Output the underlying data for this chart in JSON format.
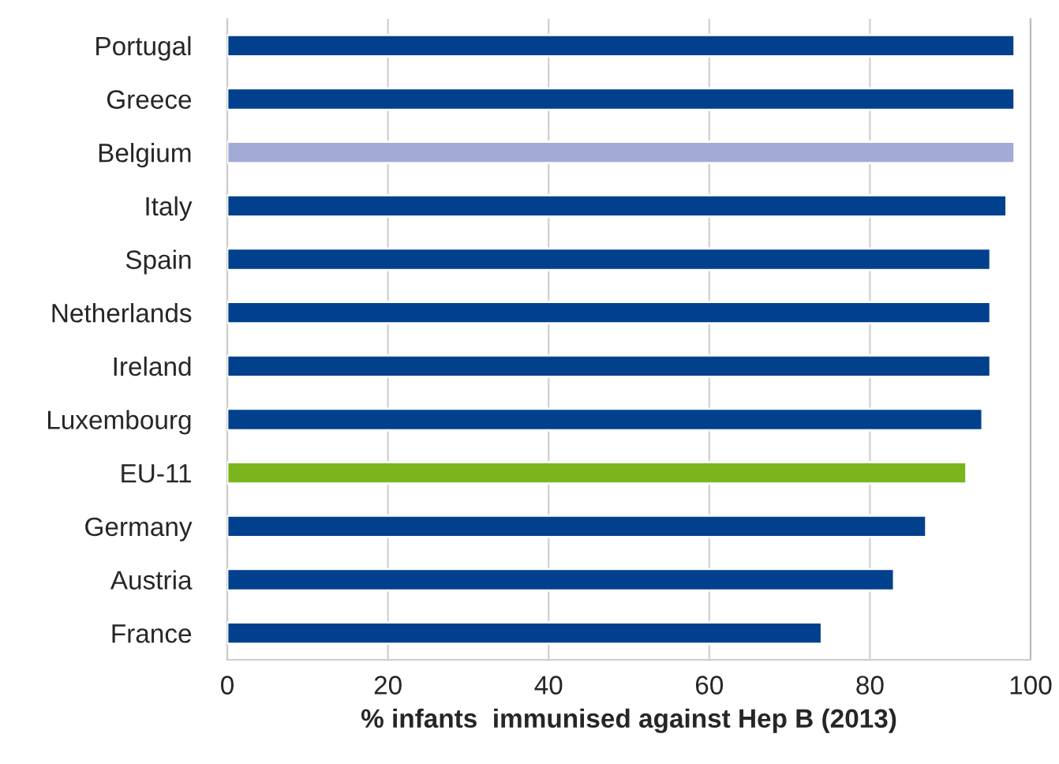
{
  "chart_data": {
    "type": "bar",
    "orientation": "horizontal",
    "xlabel": "% infants  immunised against Hep B (2013)",
    "categories": [
      "Portugal",
      "Greece",
      "Belgium",
      "Italy",
      "Spain",
      "Netherlands",
      "Ireland",
      "Luxembourg",
      "EU-11",
      "Germany",
      "Austria",
      "France"
    ],
    "values": [
      98,
      98,
      98,
      97,
      95,
      95,
      95,
      94,
      92,
      87,
      83,
      74
    ],
    "colors": [
      "#00408c",
      "#00408c",
      "#a3aad6",
      "#00408c",
      "#00408c",
      "#00408c",
      "#00408c",
      "#00408c",
      "#7ab51d",
      "#00408c",
      "#00408c",
      "#00408c"
    ],
    "xlim": [
      0,
      100
    ],
    "xticks": [
      0,
      20,
      40,
      60,
      80,
      100
    ],
    "grid": "x"
  }
}
